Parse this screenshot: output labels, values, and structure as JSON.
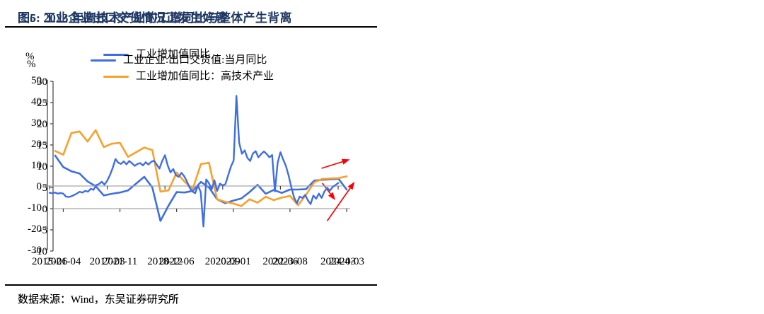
{
  "page": {
    "background": "#ffffff"
  },
  "colors": {
    "title_navy": "#1F3864",
    "line_blue": "#3E6EE4",
    "line_orange": "#FAA029",
    "arrow_red": "#FF0000",
    "zero_line_gray": "#A6A6A6",
    "axis_gray": "#404040"
  },
  "figures": [
    {
      "title": "图5:  2023 年高技术产业的工增同比与整体产生背离",
      "source": "数据来源：Wind，东吴证券研究所"
    },
    {
      "title": "图6:  工业企业出口交货情况正发生好转",
      "source": "数据来源：Wind，东吴证券研究所"
    }
  ],
  "chart_data": [
    {
      "type": "line",
      "title": "图5:  2023 年高技术产业的工增同比与整体产生背离",
      "xlabel": "",
      "ylabel": "%",
      "ylim": [
        -10,
        30
      ],
      "yticks": [
        30,
        25,
        20,
        15,
        10,
        5,
        0,
        -5,
        -10
      ],
      "grid": "zero-line-only",
      "legend_position": "top-left",
      "x_monthly_range": [
        "2021-03",
        "2024-03"
      ],
      "xtick_labels": [
        "2021-04",
        "2021-11",
        "2022-06",
        "2023-01",
        "2023-08",
        "2024-03"
      ],
      "xtick_indices": [
        1,
        8,
        15,
        22,
        29,
        36
      ],
      "series": [
        {
          "name": "工业增加值同比",
          "color": "#3E6EE4",
          "values": [
            12.5,
            9.8,
            8.8,
            8.3,
            6.4,
            5.3,
            3.1,
            3.5,
            3.8,
            4.3,
            5.9,
            7.5,
            5.0,
            -2.9,
            0.7,
            3.9,
            3.8,
            4.2,
            6.3,
            5.0,
            2.2,
            1.3,
            1.9,
            2.4,
            3.9,
            5.6,
            3.5,
            4.4,
            3.7,
            4.5,
            4.5,
            4.6,
            6.6,
            6.8,
            6.9,
            7.0,
            4.5
          ]
        },
        {
          "name": "工业增加值同比：高技术产业",
          "color": "#FAA029",
          "values": [
            13.6,
            12.7,
            17.8,
            18.2,
            15.8,
            18.5,
            14.5,
            15.3,
            15.5,
            12.2,
            13.3,
            14.4,
            13.8,
            4.0,
            4.3,
            8.5,
            6.3,
            4.7,
            10.5,
            10.8,
            2.2,
            1.6,
            1.2,
            0.6,
            2.2,
            1.4,
            2.8,
            2.0,
            2.6,
            3.0,
            0.8,
            3.3,
            6.2,
            7.0,
            7.1,
            7.2,
            7.6
          ]
        }
      ],
      "annotations": [
        {
          "type": "arrow",
          "color": "#FF0000",
          "from": [
            32.9,
            9.5
          ],
          "to": [
            36.4,
            11.6
          ]
        },
        {
          "type": "arrow",
          "color": "#FF0000",
          "from": [
            33.0,
            6.0
          ],
          "to": [
            34.6,
            2.0
          ]
        }
      ]
    },
    {
      "type": "line",
      "title": "图6:  工业企业出口交货情况正发生好转",
      "xlabel": "",
      "ylabel": "%",
      "ylim": [
        -30,
        50
      ],
      "yticks": [
        50,
        40,
        30,
        20,
        10,
        0,
        -10,
        -20,
        -30
      ],
      "grid": "zero-line-only",
      "legend_position": "top",
      "x_monthly_range": [
        "2015-06",
        "2024-03"
      ],
      "xtick_labels": [
        "2015-06",
        "2017-03",
        "2018-12",
        "2020-09",
        "2022-06",
        "2024-03"
      ],
      "xtick_indices": [
        0,
        21,
        42,
        63,
        84,
        105
      ],
      "series": [
        {
          "name": "工业企业:出口交货值:当月同比",
          "color": "#3E6EE4",
          "values": [
            -3.2,
            -3.4,
            -3.1,
            -3.6,
            -3.3,
            -3.6,
            -5.0,
            -5.2,
            -4.8,
            -4.2,
            -3.5,
            -2.7,
            -3.1,
            -2.3,
            -2.7,
            -1.3,
            -1.8,
            0.4,
            0.9,
            2.0,
            0.6,
            2.5,
            5.2,
            8.6,
            12.7,
            11.0,
            10.4,
            11.6,
            10.2,
            11.8,
            10.7,
            9.5,
            10.4,
            10.8,
            9.7,
            11.2,
            10.1,
            11.4,
            11.9,
            10.1,
            8.2,
            11.8,
            14.5,
            9.7,
            6.4,
            8.0,
            5.1,
            4.3,
            6.2,
            4.6,
            2.1,
            -0.9,
            -2.6,
            -3.4,
            0.2,
            -2.8,
            -19.1,
            3.1,
            1.3,
            -1.5,
            2.7,
            -2.3,
            1.1,
            0.3,
            0.9,
            5.1,
            9.2,
            12.0,
            42.5,
            20.4,
            15.2,
            16.8,
            13.2,
            11.8,
            15.3,
            16.4,
            13.5,
            15.1,
            16.3,
            15.1,
            13.5,
            14.6,
            -2.5,
            11.0,
            15.9,
            12.5,
            9.4,
            4.8,
            -0.7,
            -5.5,
            -8.1,
            -5.0,
            -5.6,
            -4.2,
            -6.8,
            -8.5,
            -4.5,
            -6.0,
            -3.6,
            -5.6,
            -2.6,
            -0.9,
            -2.2,
            -0.5,
            0.4,
            1.4
          ]
        }
      ],
      "annotations": [
        {
          "type": "arrow",
          "color": "#FF0000",
          "from": [
            101.0,
            -16.5
          ],
          "to": [
            111.0,
            2.0
          ]
        }
      ]
    }
  ]
}
